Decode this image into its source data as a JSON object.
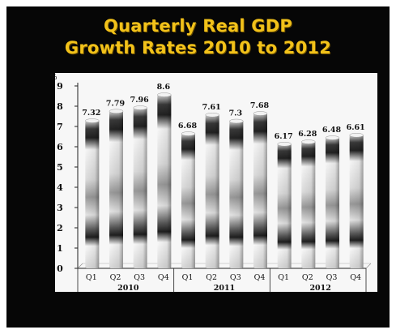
{
  "title_line1": "Quarterly Real GDP",
  "title_line2": "Growth Rates 2010 to 2012",
  "chart_data": {
    "type": "bar",
    "title": "Quarterly Real GDP Growth Rates 2010 to 2012",
    "ylabel": "%",
    "ylim": [
      0,
      9
    ],
    "yticks": [
      0,
      1,
      2,
      3,
      4,
      5,
      6,
      7,
      8,
      9
    ],
    "categories": [
      "Q1",
      "Q2",
      "Q3",
      "Q4",
      "Q1",
      "Q2",
      "Q3",
      "Q4",
      "Q1",
      "Q2",
      "Q3",
      "Q4"
    ],
    "groups": [
      {
        "label": "2010",
        "start": 0,
        "end": 3
      },
      {
        "label": "2011",
        "start": 4,
        "end": 7
      },
      {
        "label": "2012",
        "start": 8,
        "end": 11
      }
    ],
    "values": [
      7.32,
      7.79,
      7.96,
      8.6,
      6.68,
      7.61,
      7.3,
      7.68,
      6.17,
      6.28,
      6.48,
      6.61
    ],
    "data_labels": [
      "7.32",
      "7.79",
      "7.96",
      "8.6",
      "6.68",
      "7.61",
      "7.3",
      "7.68",
      "6.17",
      "6.28",
      "6.48",
      "6.61"
    ],
    "grid": false,
    "colors": {
      "background": "#060606",
      "title": "#f2c21a",
      "panel": "#f7f7f7",
      "bar_dark": "#2a2a2a",
      "bar_light": "#f4f4f4"
    }
  }
}
